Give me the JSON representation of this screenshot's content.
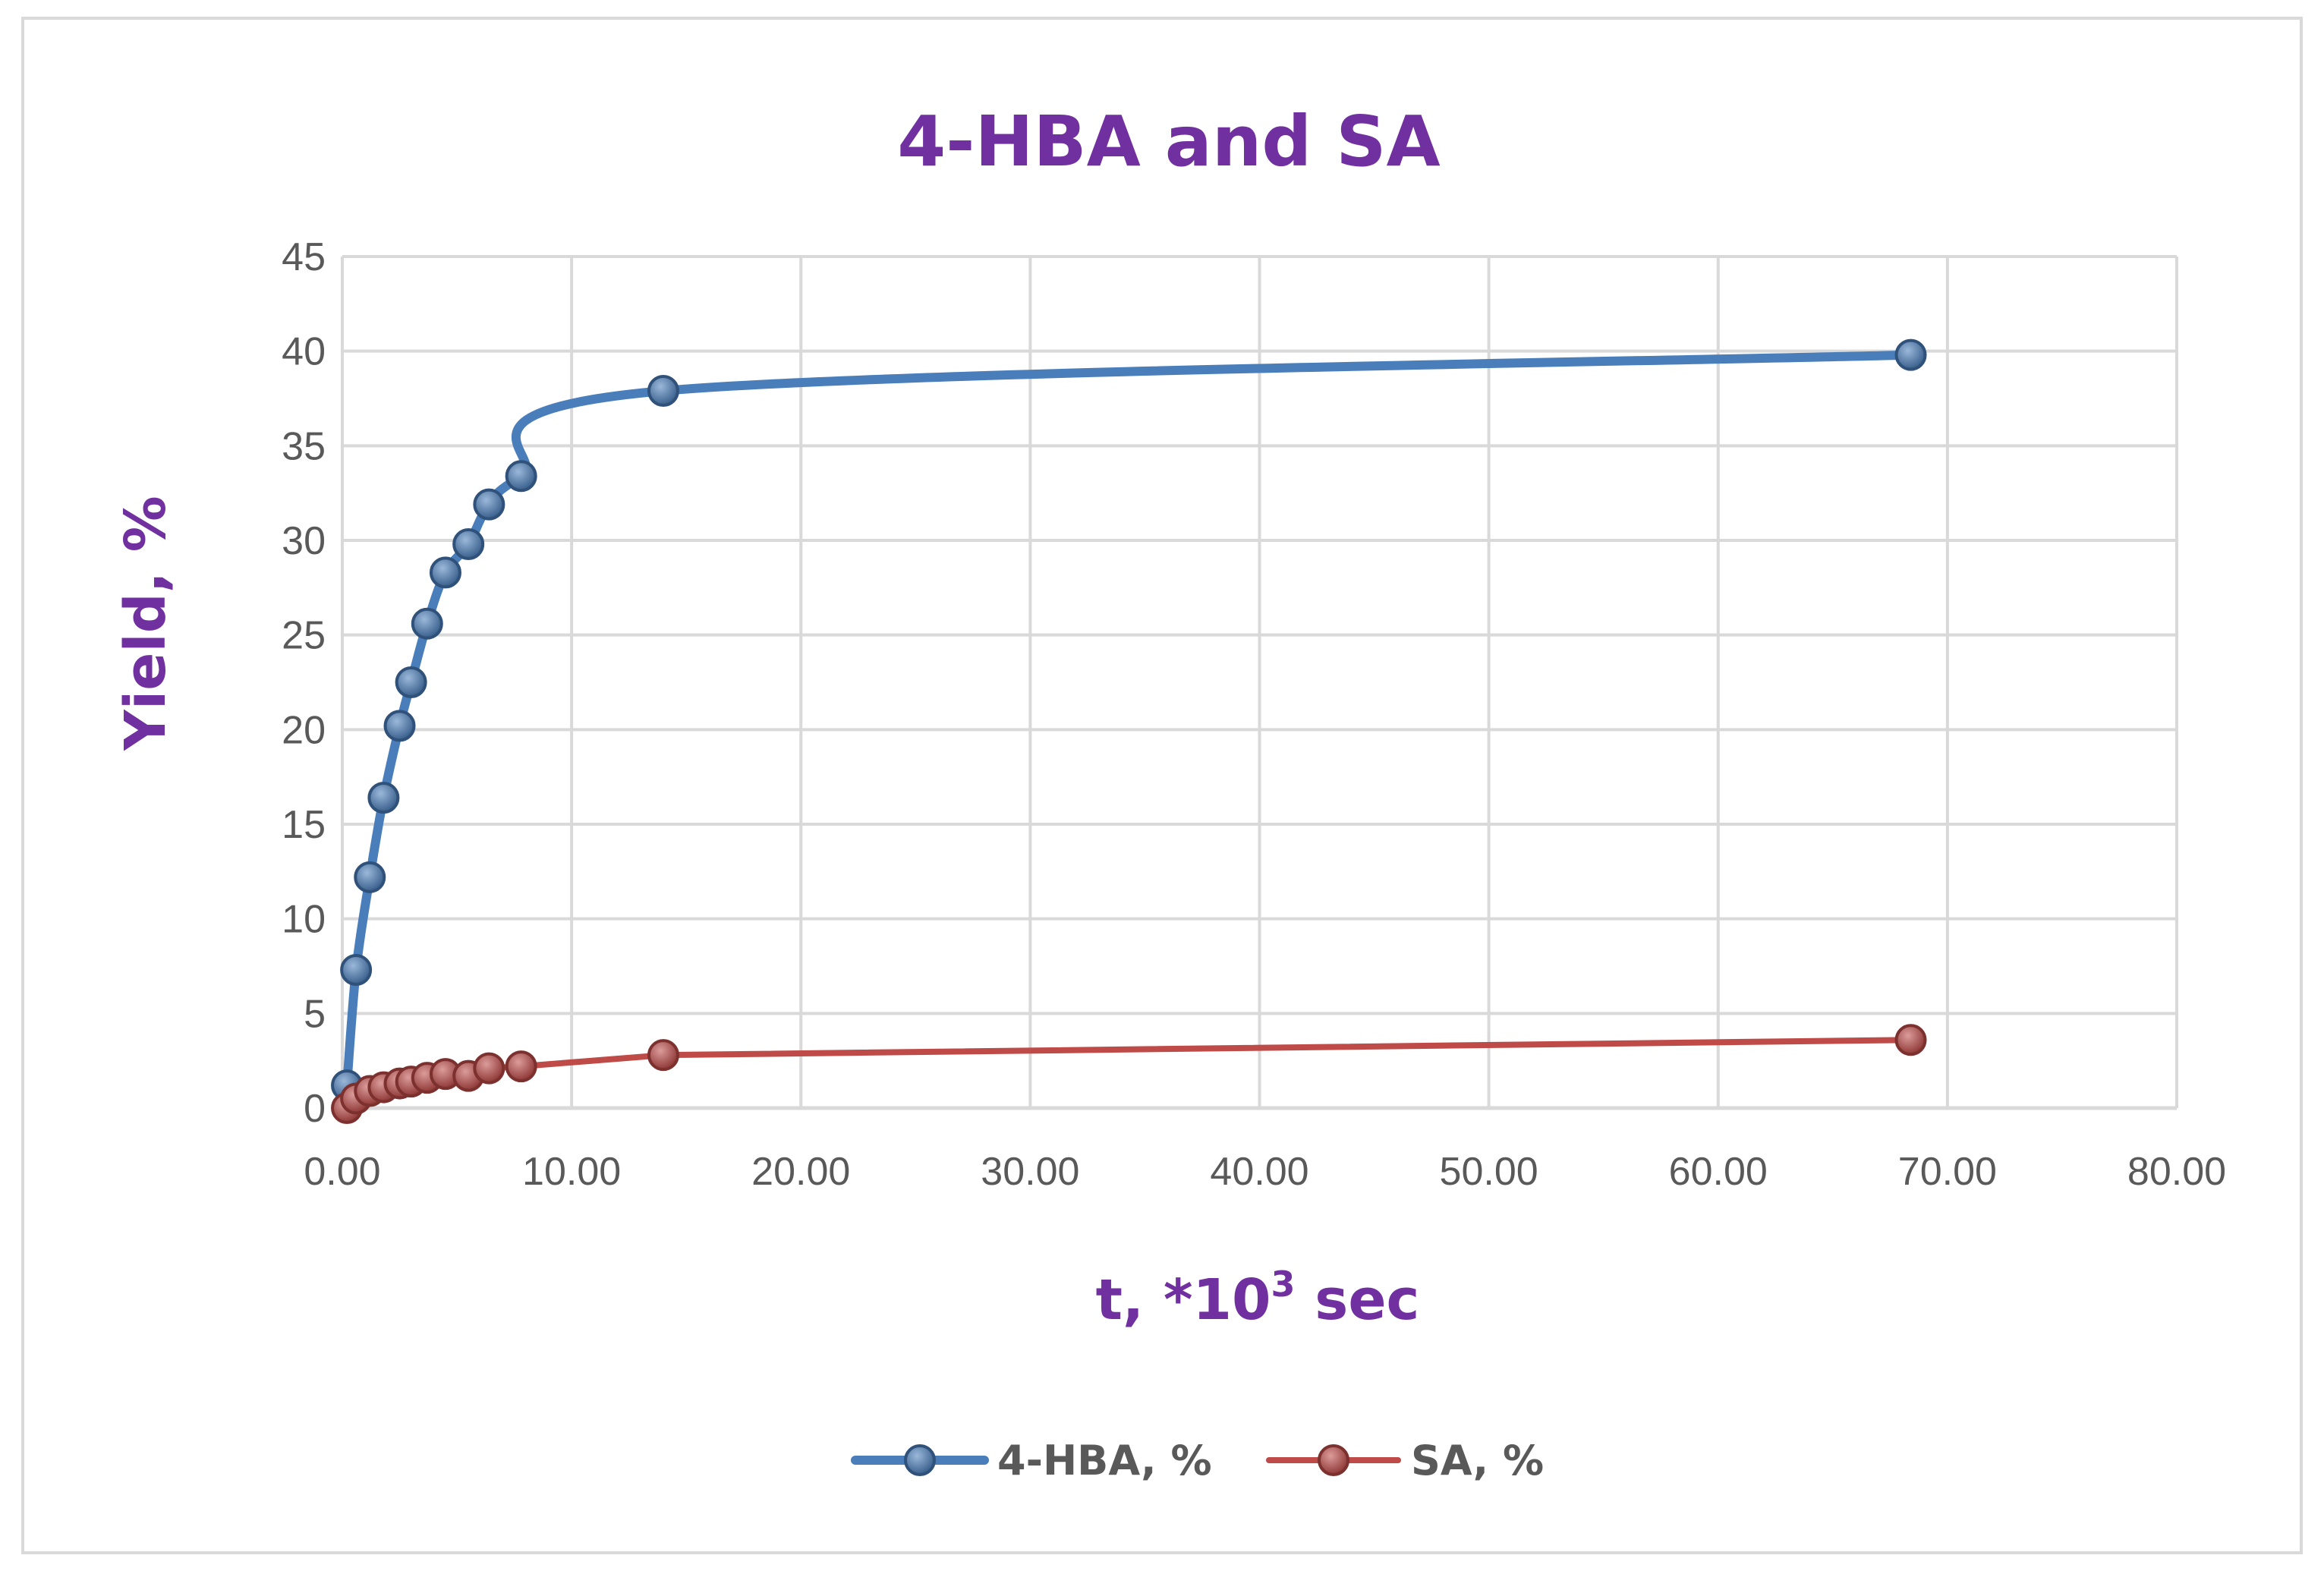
{
  "chart_data": {
    "type": "line",
    "title": "4-HBA and SA",
    "xlabel": {
      "base": "t, *10",
      "sup": "3",
      "rest": " sec"
    },
    "ylabel": "Yield, %",
    "xlim": [
      0,
      80
    ],
    "ylim": [
      0,
      45
    ],
    "x_ticks": [
      "0.00",
      "10.00",
      "20.00",
      "30.00",
      "40.00",
      "50.00",
      "60.00",
      "70.00",
      "80.00"
    ],
    "y_ticks": [
      "0",
      "5",
      "10",
      "15",
      "20",
      "25",
      "30",
      "35",
      "40",
      "45"
    ],
    "grid": true,
    "legend_position": "bottom",
    "series": [
      {
        "name": "4-HBA, %",
        "color": "#4a7ebb",
        "smooth": true,
        "points": [
          [
            0.2,
            1.2
          ],
          [
            0.6,
            7.3
          ],
          [
            1.2,
            12.2
          ],
          [
            1.8,
            16.4
          ],
          [
            2.5,
            20.2
          ],
          [
            3.0,
            22.5
          ],
          [
            3.7,
            25.6
          ],
          [
            4.5,
            28.3
          ],
          [
            5.5,
            29.8
          ],
          [
            6.4,
            31.9
          ],
          [
            7.8,
            33.4
          ],
          [
            14.0,
            37.9
          ],
          [
            68.4,
            39.8
          ]
        ]
      },
      {
        "name": "SA, %",
        "color": "#be4b48",
        "smooth": false,
        "points": [
          [
            0.2,
            0.0
          ],
          [
            0.6,
            0.5
          ],
          [
            1.2,
            0.9
          ],
          [
            1.8,
            1.1
          ],
          [
            2.5,
            1.3
          ],
          [
            3.0,
            1.4
          ],
          [
            3.7,
            1.6
          ],
          [
            4.5,
            1.8
          ],
          [
            5.5,
            1.7
          ],
          [
            6.4,
            2.1
          ],
          [
            7.8,
            2.2
          ],
          [
            14.0,
            2.8
          ],
          [
            68.4,
            3.6
          ]
        ]
      }
    ]
  }
}
